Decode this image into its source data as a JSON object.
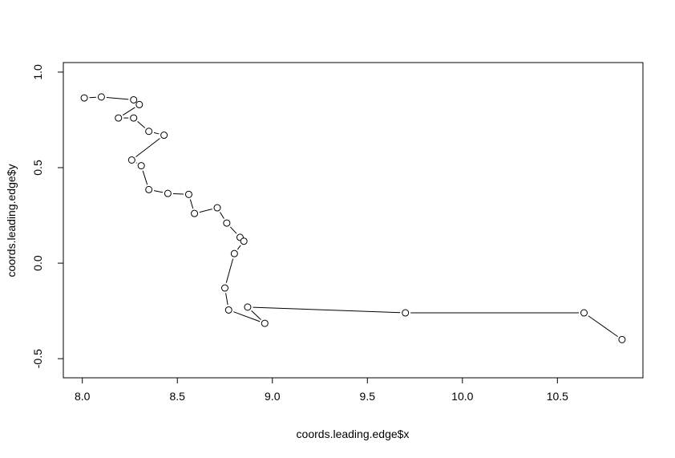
{
  "chart_data": {
    "type": "scatter",
    "title": "",
    "xlabel": "coords.leading.edge$x",
    "ylabel": "coords.leading.edge$y",
    "xlim": [
      7.9,
      10.95
    ],
    "ylim": [
      -0.6,
      1.05
    ],
    "x_ticks": [
      8.0,
      8.5,
      9.0,
      9.5,
      10.0,
      10.5
    ],
    "x_tick_labels": [
      "8.0",
      "8.5",
      "9.0",
      "9.5",
      "10.0",
      "10.5"
    ],
    "y_ticks": [
      -0.5,
      0.0,
      0.5,
      1.0
    ],
    "y_tick_labels": [
      "-0.5",
      "0.0",
      "0.5",
      "1.0"
    ],
    "grid": false,
    "line_connected": true,
    "marker": "open-circle",
    "line_color": "#000000",
    "points": [
      {
        "x": 8.01,
        "y": 0.865
      },
      {
        "x": 8.1,
        "y": 0.87
      },
      {
        "x": 8.27,
        "y": 0.855
      },
      {
        "x": 8.3,
        "y": 0.83
      },
      {
        "x": 8.19,
        "y": 0.76
      },
      {
        "x": 8.27,
        "y": 0.76
      },
      {
        "x": 8.35,
        "y": 0.69
      },
      {
        "x": 8.43,
        "y": 0.67
      },
      {
        "x": 8.26,
        "y": 0.54
      },
      {
        "x": 8.31,
        "y": 0.51
      },
      {
        "x": 8.35,
        "y": 0.385
      },
      {
        "x": 8.45,
        "y": 0.365
      },
      {
        "x": 8.56,
        "y": 0.36
      },
      {
        "x": 8.59,
        "y": 0.26
      },
      {
        "x": 8.71,
        "y": 0.29
      },
      {
        "x": 8.76,
        "y": 0.21
      },
      {
        "x": 8.83,
        "y": 0.135
      },
      {
        "x": 8.85,
        "y": 0.115
      },
      {
        "x": 8.8,
        "y": 0.05
      },
      {
        "x": 8.75,
        "y": -0.13
      },
      {
        "x": 8.77,
        "y": -0.245
      },
      {
        "x": 8.96,
        "y": -0.315
      },
      {
        "x": 8.87,
        "y": -0.23
      },
      {
        "x": 9.7,
        "y": -0.26
      },
      {
        "x": 10.64,
        "y": -0.26
      },
      {
        "x": 10.84,
        "y": -0.4
      }
    ]
  }
}
